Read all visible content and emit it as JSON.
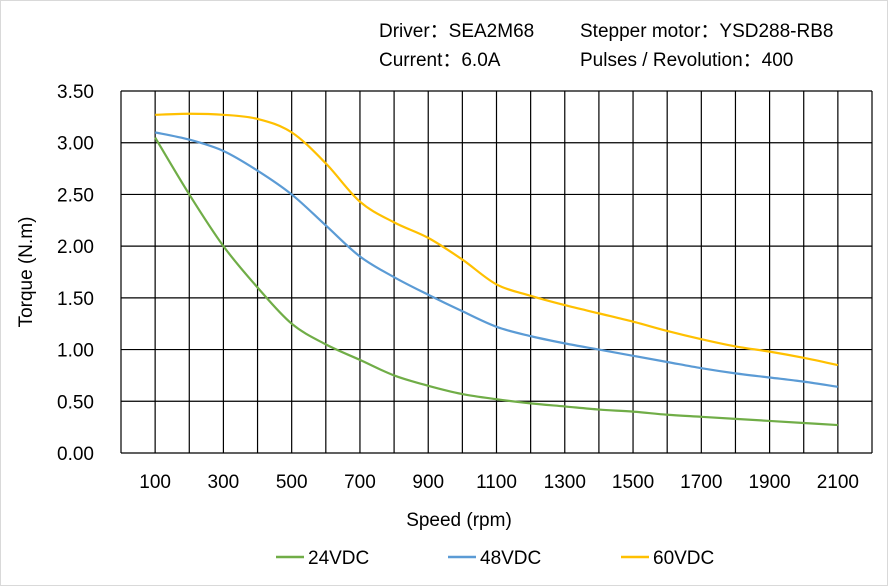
{
  "header": {
    "driver": "Driver：SEA2M68",
    "motor": "Stepper motor：YSD288-RB8",
    "current": "Current：6.0A",
    "pulses": "Pulses / Revolution：400"
  },
  "chart_data": {
    "type": "line",
    "title": "",
    "xlabel": "Speed  (rpm)",
    "ylabel": "Torque (N.m)",
    "xlim": [
      0,
      2200
    ],
    "ylim": [
      0,
      3.5
    ],
    "grid": true,
    "legend": "bottom",
    "x_ticks": [
      "100",
      "300",
      "500",
      "700",
      "900",
      "1100",
      "1300",
      "1500",
      "1700",
      "1900",
      "2100"
    ],
    "y_ticks": [
      "0.00",
      "0.50",
      "1.00",
      "1.50",
      "2.00",
      "2.50",
      "3.00",
      "3.50"
    ],
    "x": [
      100,
      200,
      300,
      400,
      500,
      600,
      700,
      800,
      900,
      1000,
      1100,
      1200,
      1300,
      1400,
      1500,
      1600,
      1700,
      1800,
      1900,
      2000,
      2100
    ],
    "series": [
      {
        "name": "24VDC",
        "color": "#70ad47",
        "values": [
          3.05,
          2.5,
          2.0,
          1.6,
          1.25,
          1.05,
          0.9,
          0.75,
          0.65,
          0.57,
          0.52,
          0.48,
          0.45,
          0.42,
          0.4,
          0.37,
          0.35,
          0.33,
          0.31,
          0.29,
          0.27
        ]
      },
      {
        "name": "48VDC",
        "color": "#5b9bd5",
        "values": [
          3.1,
          3.03,
          2.92,
          2.73,
          2.5,
          2.2,
          1.9,
          1.7,
          1.53,
          1.37,
          1.22,
          1.13,
          1.06,
          1.0,
          0.94,
          0.88,
          0.82,
          0.77,
          0.73,
          0.69,
          0.64
        ]
      },
      {
        "name": "60VDC",
        "color": "#ffc000",
        "values": [
          3.27,
          3.28,
          3.27,
          3.23,
          3.1,
          2.8,
          2.43,
          2.23,
          2.08,
          1.87,
          1.63,
          1.52,
          1.43,
          1.35,
          1.27,
          1.18,
          1.1,
          1.03,
          0.98,
          0.92,
          0.85
        ]
      }
    ]
  }
}
